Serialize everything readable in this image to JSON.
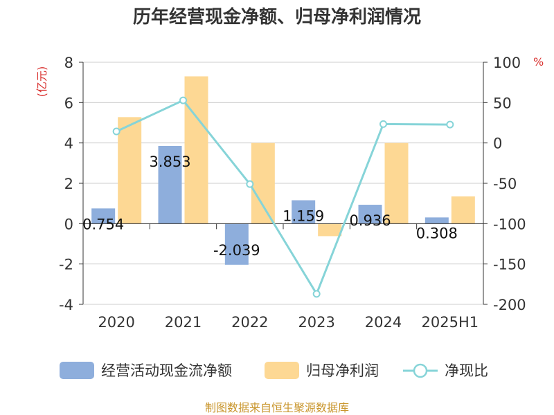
{
  "chart_data": {
    "type": "bar",
    "title": "历年经营现金净额、归母净利润情况",
    "categories": [
      "2020",
      "2021",
      "2022",
      "2023",
      "2024",
      "2025H1"
    ],
    "left_axis": {
      "unit": "(亿元)",
      "ylim": [
        -4,
        8
      ],
      "ticks": [
        "-4",
        "-2",
        "0",
        "2",
        "4",
        "6",
        "8"
      ]
    },
    "right_axis": {
      "unit": "%",
      "ylim": [
        -200,
        100
      ],
      "ticks": [
        "-200",
        "-150",
        "-100",
        "-50",
        "0",
        "50",
        "100"
      ]
    },
    "series": [
      {
        "name": "经营活动现金流净额",
        "type": "bar",
        "axis": "left",
        "color": "#8eaedc",
        "values": [
          0.754,
          3.853,
          -2.039,
          1.159,
          0.936,
          0.308
        ],
        "labels": [
          "0.754",
          "3.853",
          "-2.039",
          "1.159",
          "0.936",
          "0.308"
        ]
      },
      {
        "name": "归母净利润",
        "type": "bar",
        "axis": "left",
        "color": "#fdd894",
        "values": [
          5.28,
          7.3,
          4.0,
          -0.62,
          4.0,
          1.35
        ]
      },
      {
        "name": "净现比",
        "type": "line",
        "axis": "right",
        "color": "#86d4d8",
        "values": [
          14.3,
          52.8,
          -51.0,
          -187.0,
          23.4,
          22.8
        ]
      }
    ],
    "grid": true,
    "legend_position": "bottom"
  },
  "source": "制图数据来自恒生聚源数据库",
  "colors": {
    "axis_unit": "#d9312f",
    "source_text": "#c9962d",
    "grid": "#cccccc",
    "axis_line": "#333333"
  }
}
